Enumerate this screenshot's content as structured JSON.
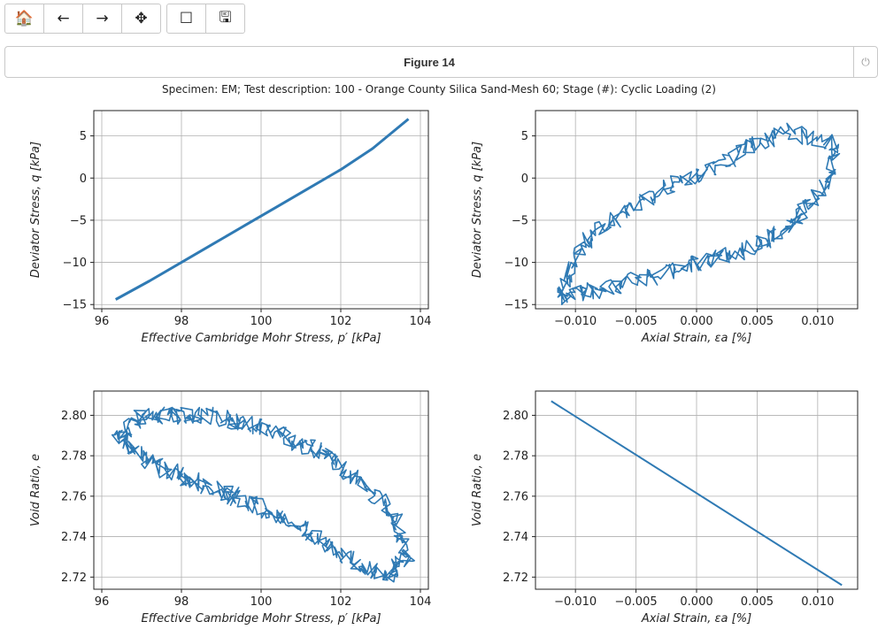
{
  "toolbar": {
    "buttons": [
      {
        "name": "home-button",
        "icon": "home-icon",
        "glyph": "🏠"
      },
      {
        "name": "back-button",
        "icon": "arrow-left-icon",
        "glyph": "←"
      },
      {
        "name": "forward-button",
        "icon": "arrow-right-icon",
        "glyph": "→"
      },
      {
        "name": "pan-button",
        "icon": "move-icon",
        "glyph": "✥"
      },
      {
        "name": "zoom-button",
        "icon": "rectangle-icon",
        "glyph": "☐"
      },
      {
        "name": "save-button",
        "icon": "floppy-disk-icon",
        "glyph": "🖫"
      }
    ]
  },
  "figure": {
    "title": "Figure 14",
    "close_icon": "power-icon",
    "close_glyph": "⏻",
    "suptitle": "Specimen: EM; Test description: 100 - Orange County Silica Sand-Mesh 60; Stage (#): Cyclic Loading (2)"
  },
  "chart_data": [
    {
      "type": "line",
      "xlabel": "Effective Cambridge Mohr Stress,  p′ [kPa]",
      "ylabel": "Deviator Stress,  q [kPa]",
      "xlim": [
        95.8,
        104.2
      ],
      "ylim": [
        -15.5,
        8
      ],
      "xticks": [
        96,
        98,
        100,
        102,
        104
      ],
      "yticks": [
        -15,
        -10,
        -5,
        0,
        5
      ],
      "xtick_labels": [
        "96",
        "98",
        "100",
        "102",
        "104"
      ],
      "ytick_labels": [
        "−15",
        "−10",
        "−5",
        "0",
        "5"
      ],
      "grid": true,
      "color": "#2f7ab4",
      "x": [
        96.35,
        97.2,
        98.0,
        98.8,
        99.6,
        100.4,
        101.2,
        102.0,
        102.8,
        103.7
      ],
      "y": [
        -14.4,
        -12.2,
        -10.0,
        -7.8,
        -5.6,
        -3.4,
        -1.2,
        1.0,
        3.5,
        7.0
      ]
    },
    {
      "type": "line",
      "xlabel": "Axial Strain,  εa [%]",
      "ylabel": "Deviator Stress,  q [kPa]",
      "xlim": [
        -0.0133,
        0.0133
      ],
      "ylim": [
        -15.5,
        8
      ],
      "xticks": [
        -0.01,
        -0.005,
        0.0,
        0.005,
        0.01
      ],
      "yticks": [
        -15,
        -10,
        -5,
        0,
        5
      ],
      "xtick_labels": [
        "−0.010",
        "−0.005",
        "0.000",
        "0.005",
        "0.010"
      ],
      "ytick_labels": [
        "−15",
        "−10",
        "−5",
        "0",
        "5"
      ],
      "grid": true,
      "color": "#2f7ab4",
      "x": [
        -0.0112,
        -0.0095,
        -0.0065,
        -0.003,
        0.0005,
        0.004,
        0.0075,
        0.0115,
        0.011,
        0.009,
        0.0075,
        0.005,
        0.0015,
        -0.002,
        -0.006,
        -0.009,
        -0.0112
      ],
      "y": [
        -14.0,
        -8.0,
        -4.5,
        -1.5,
        0.5,
        3.5,
        5.5,
        4.0,
        0.0,
        -3.5,
        -6.0,
        -8.0,
        -9.5,
        -11.0,
        -12.5,
        -13.5,
        -14.0
      ]
    },
    {
      "type": "line",
      "xlabel": "Effective Cambridge Mohr Stress,  p′ [kPa]",
      "ylabel": "Void Ratio,  e",
      "xlim": [
        95.8,
        104.2
      ],
      "ylim": [
        2.714,
        2.812
      ],
      "xticks": [
        96,
        98,
        100,
        102,
        104
      ],
      "yticks": [
        2.72,
        2.74,
        2.76,
        2.78,
        2.8
      ],
      "xtick_labels": [
        "96",
        "98",
        "100",
        "102",
        "104"
      ],
      "ytick_labels": [
        "2.72",
        "2.74",
        "2.76",
        "2.78",
        "2.80"
      ],
      "grid": true,
      "color": "#2f7ab4",
      "x": [
        96.4,
        97.0,
        97.8,
        98.6,
        99.4,
        100.2,
        101.0,
        101.8,
        102.6,
        103.4,
        103.7,
        103.2,
        102.4,
        101.6,
        100.8,
        100.0,
        99.2,
        98.4,
        97.6,
        96.9,
        96.4
      ],
      "y": [
        2.79,
        2.8,
        2.8,
        2.8,
        2.797,
        2.793,
        2.786,
        2.779,
        2.766,
        2.748,
        2.73,
        2.722,
        2.726,
        2.737,
        2.746,
        2.754,
        2.761,
        2.767,
        2.773,
        2.781,
        2.79
      ]
    },
    {
      "type": "line",
      "xlabel": "Axial Strain,  εa [%]",
      "ylabel": "Void Ratio,  e",
      "xlim": [
        -0.0133,
        0.0133
      ],
      "ylim": [
        2.714,
        2.812
      ],
      "xticks": [
        -0.01,
        -0.005,
        0.0,
        0.005,
        0.01
      ],
      "yticks": [
        2.72,
        2.74,
        2.76,
        2.78,
        2.8
      ],
      "xtick_labels": [
        "−0.010",
        "−0.005",
        "0.000",
        "0.005",
        "0.010"
      ],
      "ytick_labels": [
        "2.72",
        "2.74",
        "2.76",
        "2.78",
        "2.80"
      ],
      "grid": true,
      "color": "#2f7ab4",
      "x": [
        -0.012,
        0.012
      ],
      "y": [
        2.807,
        2.716
      ]
    }
  ]
}
